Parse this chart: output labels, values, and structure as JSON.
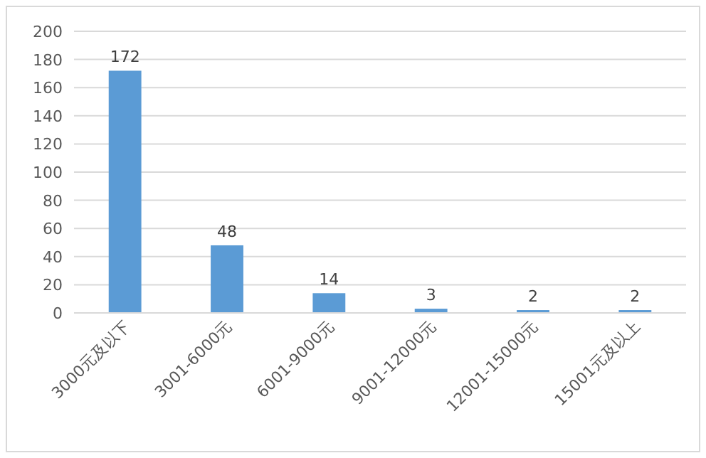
{
  "chart_data": {
    "type": "bar",
    "categories": [
      "3000元及以下",
      "3001-6000元",
      "6001-9000元",
      "9001-12000元",
      "12001-15000元",
      "15001元及以上"
    ],
    "values": [
      172,
      48,
      14,
      3,
      2,
      2
    ],
    "color": "#5b9bd5",
    "ylim": [
      0,
      200
    ],
    "yticks": [
      0,
      20,
      40,
      60,
      80,
      100,
      120,
      140,
      160,
      180,
      200
    ],
    "grid": "y",
    "data_labels": true
  }
}
